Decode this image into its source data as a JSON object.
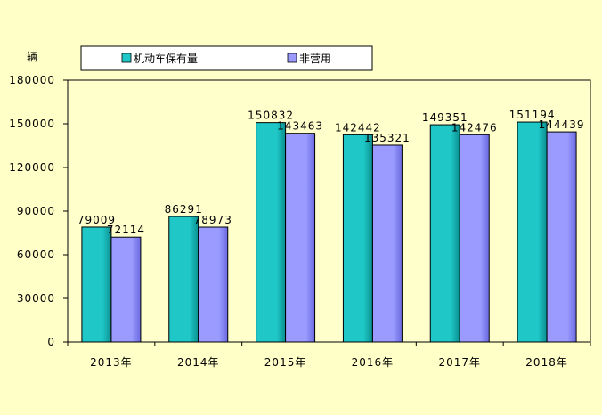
{
  "colors": {
    "background": "#FFFFC8",
    "plot_background": "#FFFFCC",
    "series_1": "#1FC7C7",
    "series_2": "#9A9AFF"
  },
  "chart_data": {
    "type": "bar",
    "title": "",
    "xlabel": "",
    "ylabel": "辆",
    "categories": [
      "2013年",
      "2014年",
      "2015年",
      "2016年",
      "2017年",
      "2018年"
    ],
    "series": [
      {
        "name": "机动车保有量",
        "values": [
          79009,
          86291,
          150832,
          142442,
          149351,
          151194
        ]
      },
      {
        "name": "非营用",
        "values": [
          72114,
          78973,
          143463,
          135321,
          142476,
          144439
        ]
      }
    ],
    "ylim": [
      0,
      180000
    ],
    "yticks": [
      0,
      30000,
      60000,
      90000,
      120000,
      150000,
      180000
    ],
    "grid": false,
    "legend": "top",
    "data_labels": true
  }
}
